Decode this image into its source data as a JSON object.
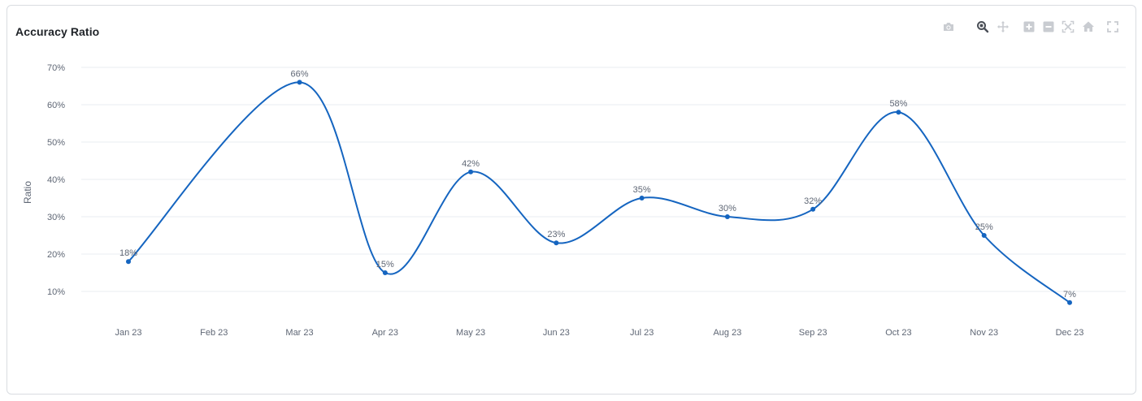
{
  "chart_data": {
    "type": "line",
    "title": "Accuracy Ratio",
    "xlabel": "",
    "ylabel": "Ratio",
    "categories": [
      "Jan 23",
      "Feb 23",
      "Mar 23",
      "Apr 23",
      "May 23",
      "Jun 23",
      "Jul 23",
      "Aug 23",
      "Sep 23",
      "Oct 23",
      "Nov 23",
      "Dec 23"
    ],
    "series": [
      {
        "name": "Accuracy Ratio",
        "color": "#1565c0",
        "values": [
          18,
          null,
          66,
          15,
          42,
          23,
          35,
          30,
          32,
          58,
          25,
          7
        ],
        "labels": [
          "18%",
          "",
          "66%",
          "15%",
          "42%",
          "23%",
          "35%",
          "30%",
          "32%",
          "58%",
          "25%",
          "7%"
        ]
      }
    ],
    "ylim": [
      0,
      70
    ],
    "yticks": [
      10,
      20,
      30,
      40,
      50,
      60,
      70
    ],
    "ytick_labels": [
      "10%",
      "20%",
      "30%",
      "40%",
      "50%",
      "60%",
      "70%"
    ],
    "grid": true,
    "gridColor": "#e9ecf0"
  },
  "modebar": {
    "buttons": [
      {
        "name": "camera-icon",
        "active": false
      },
      {
        "name": "zoom-icon",
        "active": true
      },
      {
        "name": "pan-icon",
        "active": false
      },
      {
        "name": "zoom-in-icon",
        "active": false
      },
      {
        "name": "zoom-out-icon",
        "active": false
      },
      {
        "name": "autoscale-icon",
        "active": false
      },
      {
        "name": "home-icon",
        "active": false
      },
      {
        "name": "fullscreen-icon",
        "active": false
      }
    ]
  }
}
